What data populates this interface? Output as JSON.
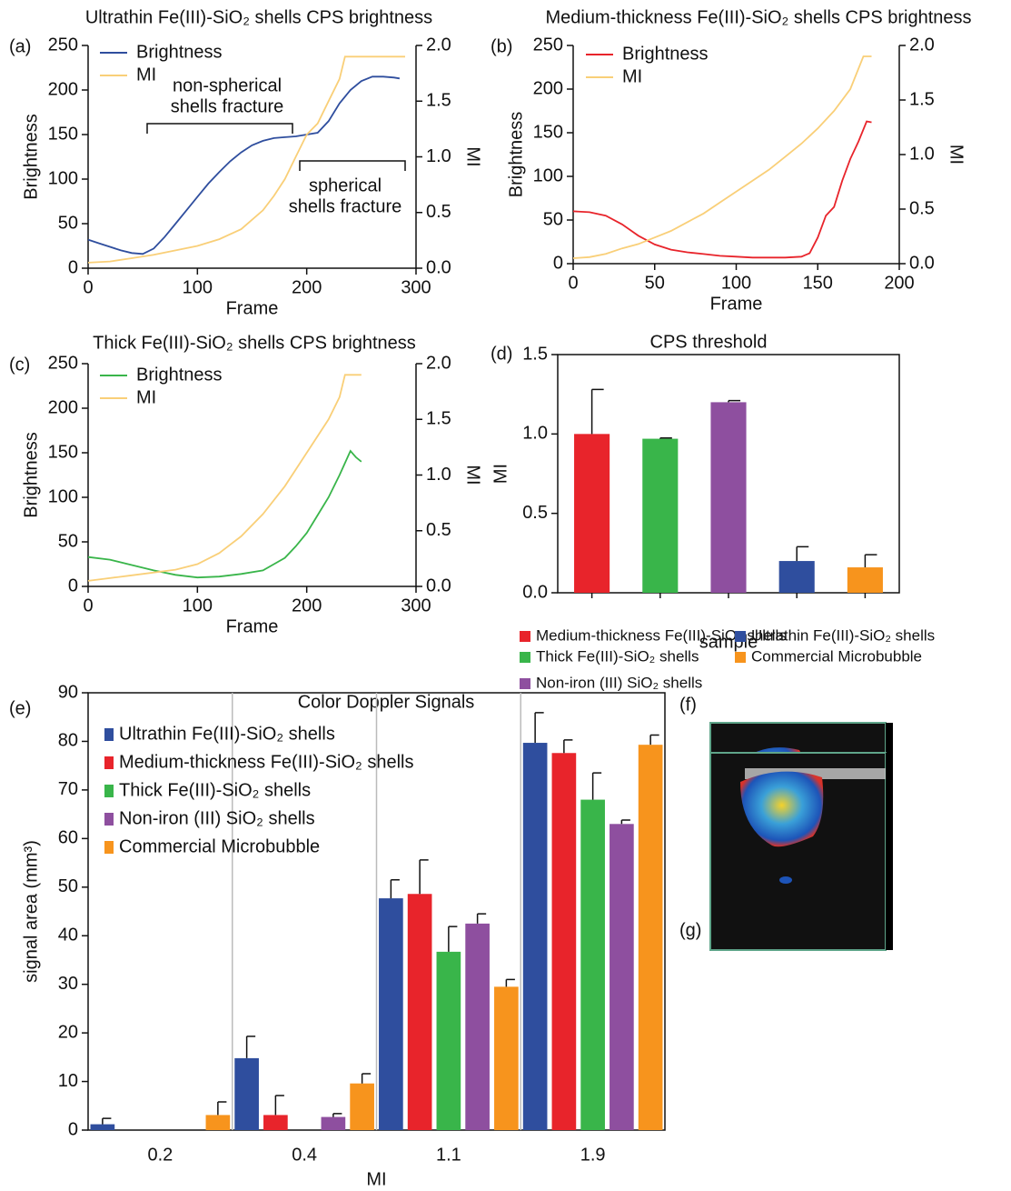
{
  "chart_data": [
    {
      "type": "line",
      "panel_label": "(a)",
      "title": "Ultrathin Fe(III)-SiO₂ shells CPS brightness",
      "xlabel": "Frame",
      "ylabel": "Brightness",
      "y2label": "MI",
      "xlim": [
        0,
        300
      ],
      "xticks": [
        0,
        100,
        200,
        300
      ],
      "ylim": [
        0,
        250
      ],
      "yticks": [
        0,
        50,
        100,
        150,
        200,
        250
      ],
      "y2lim": [
        0,
        2
      ],
      "y2ticks": [
        {
          "value": 0,
          "label": "0.0"
        },
        0.5,
        {
          "value": 1,
          "label": "1.0"
        },
        1.5,
        {
          "value": 2,
          "label": "2.0"
        }
      ],
      "annotations": [
        [
          "non-spherical",
          "shells fracture"
        ],
        [
          "spherical",
          "shells fracture"
        ]
      ],
      "series": [
        {
          "name": "Brightness",
          "color": "#2f4e9e",
          "x": [
            0,
            10,
            20,
            30,
            40,
            50,
            60,
            70,
            80,
            90,
            100,
            110,
            120,
            130,
            140,
            150,
            160,
            170,
            180,
            190,
            200,
            210,
            220,
            230,
            240,
            250,
            260,
            270,
            280,
            285
          ],
          "values": [
            32,
            28,
            24,
            20,
            17,
            16,
            22,
            35,
            50,
            65,
            80,
            95,
            108,
            120,
            130,
            138,
            143,
            146,
            147,
            148,
            150,
            152,
            165,
            185,
            200,
            210,
            215,
            215,
            214,
            213
          ]
        },
        {
          "name": "MI",
          "color": "#f9cf78",
          "axis": "y2",
          "x": [
            0,
            20,
            40,
            60,
            80,
            100,
            120,
            140,
            160,
            170,
            180,
            190,
            200,
            210,
            220,
            230,
            235,
            290
          ],
          "values": [
            0.05,
            0.06,
            0.09,
            0.12,
            0.16,
            0.2,
            0.26,
            0.35,
            0.52,
            0.65,
            0.8,
            1.0,
            1.2,
            1.3,
            1.5,
            1.7,
            1.9,
            1.9
          ]
        }
      ]
    },
    {
      "type": "line",
      "panel_label": "(b)",
      "title": "Medium-thickness Fe(III)-SiO₂ shells CPS brightness",
      "xlabel": "Frame",
      "ylabel": "Brightness",
      "y2label": "MI",
      "xlim": [
        0,
        200
      ],
      "xticks": [
        0,
        50,
        100,
        150,
        200
      ],
      "ylim": [
        0,
        250
      ],
      "yticks": [
        0,
        50,
        100,
        150,
        200,
        250
      ],
      "y2lim": [
        0,
        2
      ],
      "y2ticks": [
        {
          "value": 0,
          "label": "0.0"
        },
        0.5,
        {
          "value": 1,
          "label": "1.0"
        },
        1.5,
        {
          "value": 2,
          "label": "2.0"
        }
      ],
      "series": [
        {
          "name": "Brightness",
          "color": "#e8242b",
          "x": [
            0,
            10,
            20,
            30,
            40,
            50,
            60,
            70,
            80,
            90,
            100,
            110,
            120,
            130,
            140,
            145,
            150,
            155,
            160,
            165,
            170,
            175,
            180,
            183
          ],
          "values": [
            60,
            59,
            55,
            45,
            32,
            22,
            16,
            13,
            11,
            9,
            8,
            7,
            7,
            7,
            8,
            12,
            30,
            55,
            65,
            95,
            120,
            140,
            163,
            162
          ]
        },
        {
          "name": "MI",
          "color": "#f9cf78",
          "axis": "y2",
          "x": [
            0,
            10,
            20,
            30,
            40,
            50,
            60,
            70,
            80,
            90,
            100,
            110,
            120,
            130,
            140,
            150,
            160,
            170,
            178,
            183
          ],
          "values": [
            0.05,
            0.06,
            0.09,
            0.14,
            0.18,
            0.24,
            0.3,
            0.38,
            0.46,
            0.56,
            0.66,
            0.76,
            0.86,
            0.98,
            1.1,
            1.24,
            1.4,
            1.6,
            1.9,
            1.9
          ]
        }
      ]
    },
    {
      "type": "line",
      "panel_label": "(c)",
      "title": "Thick Fe(III)-SiO₂ shells CPS brightness",
      "xlabel": "Frame",
      "ylabel": "Brightness",
      "y2label": "MI",
      "xlim": [
        0,
        300
      ],
      "xticks": [
        0,
        100,
        200,
        300
      ],
      "ylim": [
        0,
        250
      ],
      "yticks": [
        0,
        50,
        100,
        150,
        200,
        250
      ],
      "y2lim": [
        0,
        2
      ],
      "y2ticks": [
        {
          "value": 0,
          "label": "0.0"
        },
        0.5,
        {
          "value": 1,
          "label": "1.0"
        },
        1.5,
        {
          "value": 2,
          "label": "2.0"
        }
      ],
      "series": [
        {
          "name": "Brightness",
          "color": "#39b54a",
          "x": [
            0,
            20,
            40,
            60,
            80,
            100,
            120,
            140,
            160,
            170,
            180,
            190,
            200,
            210,
            220,
            230,
            240,
            245,
            250
          ],
          "values": [
            33,
            30,
            24,
            18,
            13,
            10,
            11,
            14,
            18,
            25,
            32,
            45,
            60,
            80,
            100,
            125,
            152,
            145,
            140
          ]
        },
        {
          "name": "MI",
          "color": "#f9cf78",
          "axis": "y2",
          "x": [
            0,
            40,
            80,
            100,
            120,
            140,
            160,
            180,
            200,
            220,
            230,
            235,
            250
          ],
          "values": [
            0.05,
            0.1,
            0.15,
            0.2,
            0.3,
            0.45,
            0.65,
            0.9,
            1.2,
            1.5,
            1.7,
            1.9,
            1.9
          ]
        }
      ]
    },
    {
      "type": "bar",
      "panel_label": "(d)",
      "title": "CPS threshold",
      "xlabel": "sample",
      "ylabel": "MI",
      "ylim": [
        0,
        1.5
      ],
      "yticks": [
        {
          "value": 0,
          "label": "0.0"
        },
        0.5,
        {
          "value": 1,
          "label": "1.0"
        },
        1.5
      ],
      "series": [
        {
          "name": "Medium-thickness Fe(III)-SiO₂ shells",
          "color": "#e8242b",
          "values": [
            1.0
          ],
          "errors": [
            0.28
          ]
        },
        {
          "name": "Thick Fe(III)-SiO₂ shells",
          "color": "#39b54a",
          "values": [
            0.97
          ],
          "errors": [
            0.005
          ]
        },
        {
          "name": "Non-iron (III) SiO₂ shells",
          "color": "#8e4f9f",
          "values": [
            1.2
          ],
          "errors": [
            0.01
          ]
        },
        {
          "name": "Ultrathin Fe(III)-SiO₂ shells",
          "color": "#2f4e9e",
          "values": [
            0.2
          ],
          "errors": [
            0.09
          ]
        },
        {
          "name": "Commercial Microbubble",
          "color": "#f7941d",
          "values": [
            0.16
          ],
          "errors": [
            0.08
          ]
        }
      ]
    },
    {
      "type": "grouped_bar",
      "panel_label": "(e)",
      "title": "Color Doppler Signals",
      "xlabel": "MI",
      "ylabel": "signal area (mm³)",
      "categories": [
        "0.2",
        "0.4",
        "1.1",
        "1.9"
      ],
      "ylim": [
        0,
        90
      ],
      "yticks": [
        0,
        10,
        20,
        30,
        40,
        50,
        60,
        70,
        80,
        90
      ],
      "series": [
        {
          "name": "Ultrathin Fe(III)-SiO₂ shells",
          "color": "#2f4e9e",
          "values": [
            1.2,
            14.8,
            47.7,
            79.7
          ],
          "errors": [
            1.2,
            4.5,
            3.8,
            6.2
          ]
        },
        {
          "name": "Medium-thickness Fe(III)-SiO₂ shells",
          "color": "#e8242b",
          "values": [
            null,
            3.1,
            48.6,
            77.6
          ],
          "errors": [
            null,
            4,
            7,
            2.7
          ]
        },
        {
          "name": "Thick Fe(III)-SiO₂ shells",
          "color": "#39b54a",
          "values": [
            null,
            null,
            36.7,
            68
          ],
          "errors": [
            null,
            null,
            5.2,
            5.5
          ]
        },
        {
          "name": "Non-iron (III) SiO₂ shells",
          "color": "#8e4f9f",
          "values": [
            null,
            2.7,
            42.5,
            63
          ],
          "errors": [
            null,
            0.7,
            2,
            0.8
          ]
        },
        {
          "name": "Commercial Microbubble",
          "color": "#f7941d",
          "values": [
            3.1,
            9.6,
            29.5,
            79.3
          ],
          "errors": [
            2.7,
            2,
            1.5,
            2
          ]
        }
      ]
    }
  ],
  "images": [
    {
      "label": "(f)"
    },
    {
      "label": "(g)"
    }
  ]
}
